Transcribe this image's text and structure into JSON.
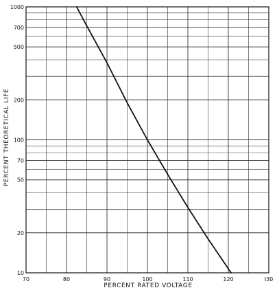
{
  "chart_data": {
    "type": "line",
    "title": "",
    "xlabel": "PERCENT RATED VOLTAGE",
    "ylabel": "PERCENT THEORETICAL LIFE",
    "xlim": [
      70,
      130
    ],
    "ylim": [
      10,
      1000
    ],
    "yscale": "log",
    "grid": true,
    "x_ticks": [
      {
        "value": 70,
        "label": "70"
      },
      {
        "value": 80,
        "label": "80"
      },
      {
        "value": 90,
        "label": "90"
      },
      {
        "value": 100,
        "label": "100"
      },
      {
        "value": 110,
        "label": "110"
      },
      {
        "value": 120,
        "label": "120"
      },
      {
        "value": 130,
        "label": "I30"
      }
    ],
    "y_ticks": [
      {
        "value": 10,
        "label": "10"
      },
      {
        "value": 20,
        "label": "20"
      },
      {
        "value": 30,
        "label": ""
      },
      {
        "value": 50,
        "label": "50"
      },
      {
        "value": 70,
        "label": "70"
      },
      {
        "value": 100,
        "label": "100"
      },
      {
        "value": 200,
        "label": "200"
      },
      {
        "value": 300,
        "label": ""
      },
      {
        "value": 500,
        "label": "500"
      },
      {
        "value": 700,
        "label": "700"
      },
      {
        "value": 1000,
        "label": "1000"
      }
    ],
    "y_gridlines": [
      10,
      20,
      30,
      40,
      50,
      60,
      70,
      80,
      90,
      100,
      200,
      300,
      400,
      500,
      600,
      700,
      800,
      900,
      1000
    ],
    "series": [
      {
        "name": "",
        "color": "#111111",
        "x": [
          82.5,
          85,
          90,
          95,
          100,
          105,
          110,
          115,
          120.7
        ],
        "y": [
          1000,
          720,
          380,
          190,
          100,
          55,
          31,
          18,
          10
        ]
      }
    ]
  }
}
